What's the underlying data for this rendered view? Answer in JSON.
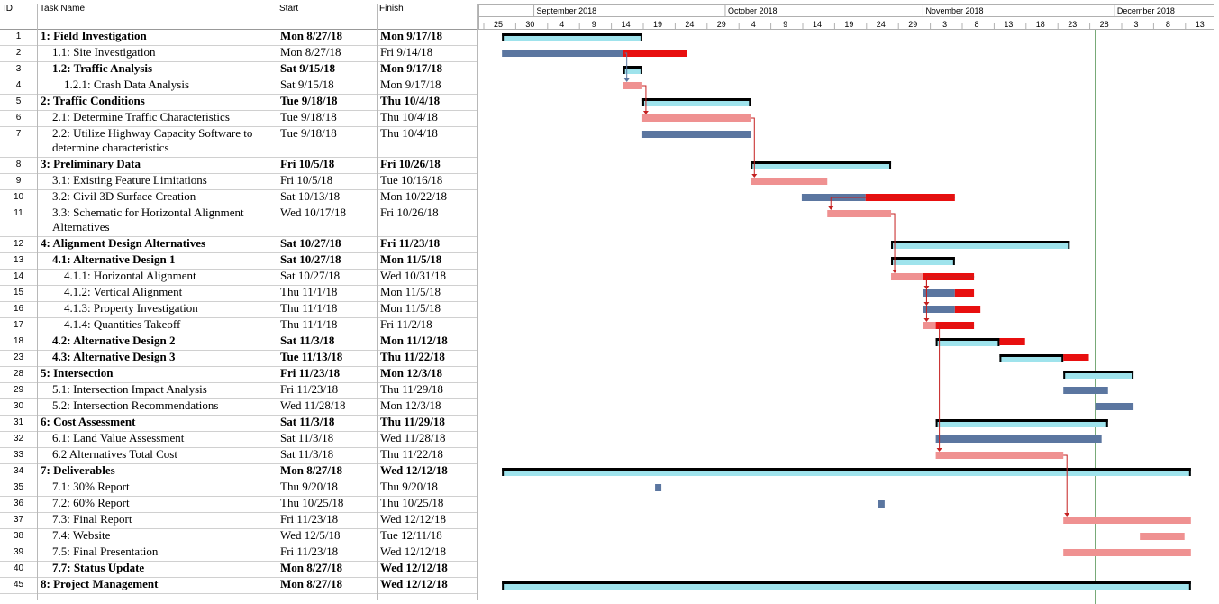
{
  "columns": {
    "id": "ID",
    "name": "Task Name",
    "start": "Start",
    "finish": "Finish"
  },
  "timeline": {
    "months": [
      "September 2018",
      "October 2018",
      "November 2018",
      "December 2018"
    ],
    "days": [
      "25",
      "30",
      "4",
      "9",
      "14",
      "19",
      "24",
      "29",
      "4",
      "9",
      "14",
      "19",
      "24",
      "29",
      "3",
      "8",
      "13",
      "18",
      "23",
      "28",
      "3",
      "8",
      "13"
    ]
  },
  "colors": {
    "summary": "#000000",
    "baseline": "#9fe3ec",
    "normal": "#5b76a0",
    "critical": "#ef9191",
    "late": "#e80f0f",
    "link": "#c42020",
    "status_line": "#6aa06a"
  },
  "tasks": [
    {
      "id": "1",
      "name": "1: Field Investigation",
      "start": "Mon 8/27/18",
      "finish": "Mon 9/17/18",
      "bold": true,
      "lvl": 0,
      "h": 18
    },
    {
      "id": "2",
      "name": "1.1: Site Investigation",
      "start": "Mon 8/27/18",
      "finish": "Fri 9/14/18",
      "lvl": 1,
      "h": 18
    },
    {
      "id": "3",
      "name": "1.2: Traffic Analysis",
      "start": "Sat 9/15/18",
      "finish": "Mon 9/17/18",
      "bold": true,
      "lvl": 1,
      "h": 18
    },
    {
      "id": "4",
      "name": "1.2.1: Crash Data Analysis",
      "start": "Sat 9/15/18",
      "finish": "Mon 9/17/18",
      "lvl": 2,
      "h": 18
    },
    {
      "id": "5",
      "name": "2: Traffic Conditions",
      "start": "Tue 9/18/18",
      "finish": "Thu 10/4/18",
      "bold": true,
      "lvl": 0,
      "h": 18
    },
    {
      "id": "6",
      "name": "2.1: Determine Traffic Characteristics",
      "start": "Tue 9/18/18",
      "finish": "Thu 10/4/18",
      "lvl": 1,
      "h": 18
    },
    {
      "id": "7",
      "name": "2.2: Utilize Highway Capacity Software to determine characteristics",
      "start": "Tue 9/18/18",
      "finish": "Thu 10/4/18",
      "lvl": 1,
      "h": 34
    },
    {
      "id": "8",
      "name": "3: Preliminary Data",
      "start": "Fri 10/5/18",
      "finish": "Fri 10/26/18",
      "bold": true,
      "lvl": 0,
      "h": 18
    },
    {
      "id": "9",
      "name": "3.1: Existing Feature Limitations",
      "start": "Fri 10/5/18",
      "finish": "Tue 10/16/18",
      "lvl": 1,
      "h": 18
    },
    {
      "id": "10",
      "name": "3.2: Civil 3D Surface Creation",
      "start": "Sat 10/13/18",
      "finish": "Mon 10/22/18",
      "lvl": 1,
      "h": 18
    },
    {
      "id": "11",
      "name": "3.3: Schematic for Horizontal Alignment Alternatives",
      "start": "Wed 10/17/18",
      "finish": "Fri 10/26/18",
      "lvl": 1,
      "h": 34
    },
    {
      "id": "12",
      "name": "4: Alignment Design Alternatives",
      "start": "Sat 10/27/18",
      "finish": "Fri 11/23/18",
      "bold": true,
      "lvl": 0,
      "h": 18
    },
    {
      "id": "13",
      "name": "4.1: Alternative Design 1",
      "start": "Sat 10/27/18",
      "finish": "Mon 11/5/18",
      "bold": true,
      "lvl": 1,
      "h": 18
    },
    {
      "id": "14",
      "name": "4.1.1: Horizontal Alignment",
      "start": "Sat 10/27/18",
      "finish": "Wed 10/31/18",
      "lvl": 2,
      "h": 18
    },
    {
      "id": "15",
      "name": "4.1.2: Vertical Alignment",
      "start": "Thu 11/1/18",
      "finish": "Mon 11/5/18",
      "lvl": 2,
      "h": 18
    },
    {
      "id": "16",
      "name": "4.1.3: Property Investigation",
      "start": "Thu 11/1/18",
      "finish": "Mon 11/5/18",
      "lvl": 2,
      "h": 18
    },
    {
      "id": "17",
      "name": "4.1.4: Quantities Takeoff",
      "start": "Thu 11/1/18",
      "finish": "Fri 11/2/18",
      "lvl": 2,
      "h": 18
    },
    {
      "id": "18",
      "name": "4.2: Alternative Design 2",
      "start": "Sat 11/3/18",
      "finish": "Mon 11/12/18",
      "bold": true,
      "lvl": 1,
      "h": 18
    },
    {
      "id": "23",
      "name": "4.3: Alternative Design 3",
      "start": "Tue 11/13/18",
      "finish": "Thu 11/22/18",
      "bold": true,
      "lvl": 1,
      "h": 18
    },
    {
      "id": "28",
      "name": "5: Intersection",
      "start": "Fri 11/23/18",
      "finish": "Mon 12/3/18",
      "bold": true,
      "lvl": 0,
      "h": 18
    },
    {
      "id": "29",
      "name": "5.1: Intersection Impact Analysis",
      "start": "Fri 11/23/18",
      "finish": "Thu 11/29/18",
      "lvl": 1,
      "h": 18
    },
    {
      "id": "30",
      "name": "5.2: Intersection Recommendations",
      "start": "Wed 11/28/18",
      "finish": "Mon 12/3/18",
      "lvl": 1,
      "h": 18
    },
    {
      "id": "31",
      "name": "6: Cost Assessment",
      "start": "Sat 11/3/18",
      "finish": "Thu 11/29/18",
      "bold": true,
      "lvl": 0,
      "h": 18
    },
    {
      "id": "32",
      "name": "6.1: Land Value Assessment",
      "start": "Sat 11/3/18",
      "finish": "Wed 11/28/18",
      "lvl": 1,
      "h": 18
    },
    {
      "id": "33",
      "name": "6.2 Alternatives Total Cost",
      "start": "Sat 11/3/18",
      "finish": "Thu 11/22/18",
      "lvl": 1,
      "h": 18
    },
    {
      "id": "34",
      "name": "7: Deliverables",
      "start": "Mon 8/27/18",
      "finish": "Wed 12/12/18",
      "bold": true,
      "lvl": 0,
      "h": 18
    },
    {
      "id": "35",
      "name": "7.1: 30% Report",
      "start": "Thu 9/20/18",
      "finish": "Thu 9/20/18",
      "lvl": 1,
      "h": 18
    },
    {
      "id": "36",
      "name": "7.2: 60% Report",
      "start": "Thu 10/25/18",
      "finish": "Thu 10/25/18",
      "lvl": 1,
      "h": 18
    },
    {
      "id": "37",
      "name": "7.3: Final Report",
      "start": "Fri 11/23/18",
      "finish": "Wed 12/12/18",
      "lvl": 1,
      "h": 18
    },
    {
      "id": "38",
      "name": "7.4: Website",
      "start": "Wed 12/5/18",
      "finish": "Tue 12/11/18",
      "lvl": 1,
      "h": 18
    },
    {
      "id": "39",
      "name": "7.5: Final Presentation",
      "start": "Fri 11/23/18",
      "finish": "Wed 12/12/18",
      "lvl": 1,
      "h": 18
    },
    {
      "id": "40",
      "name": "7.7: Status Update",
      "start": "Mon 8/27/18",
      "finish": "Wed 12/12/18",
      "bold": true,
      "lvl": 1,
      "h": 18
    },
    {
      "id": "45",
      "name": "8: Project Management",
      "start": "Mon 8/27/18",
      "finish": "Wed 12/12/18",
      "bold": true,
      "lvl": 0,
      "h": 18
    }
  ],
  "bars": [
    {
      "row": "1",
      "type": "summary",
      "s": "2018-08-27",
      "e": "2018-09-17"
    },
    {
      "row": "2",
      "type": "normal",
      "s": "2018-08-27",
      "e": "2018-09-14"
    },
    {
      "row": "2",
      "type": "late",
      "s": "2018-09-15",
      "e": "2018-09-24"
    },
    {
      "row": "3",
      "type": "summary",
      "s": "2018-09-15",
      "e": "2018-09-17"
    },
    {
      "row": "4",
      "type": "critical",
      "s": "2018-09-15",
      "e": "2018-09-17"
    },
    {
      "row": "5",
      "type": "summary",
      "s": "2018-09-18",
      "e": "2018-10-04"
    },
    {
      "row": "6",
      "type": "critical",
      "s": "2018-09-18",
      "e": "2018-10-04"
    },
    {
      "row": "7",
      "type": "normal",
      "s": "2018-09-18",
      "e": "2018-10-04"
    },
    {
      "row": "8",
      "type": "summary",
      "s": "2018-10-05",
      "e": "2018-10-26"
    },
    {
      "row": "9",
      "type": "critical",
      "s": "2018-10-05",
      "e": "2018-10-16"
    },
    {
      "row": "10",
      "type": "normal",
      "s": "2018-10-13",
      "e": "2018-10-22"
    },
    {
      "row": "10",
      "type": "late",
      "s": "2018-10-23",
      "e": "2018-11-05"
    },
    {
      "row": "11",
      "type": "critical",
      "s": "2018-10-17",
      "e": "2018-10-26"
    },
    {
      "row": "12",
      "type": "summary",
      "s": "2018-10-27",
      "e": "2018-11-23"
    },
    {
      "row": "13",
      "type": "summary",
      "s": "2018-10-27",
      "e": "2018-11-05"
    },
    {
      "row": "14",
      "type": "critical",
      "s": "2018-10-27",
      "e": "2018-10-31"
    },
    {
      "row": "14",
      "type": "late",
      "s": "2018-11-01",
      "e": "2018-11-08"
    },
    {
      "row": "15",
      "type": "normal",
      "s": "2018-11-01",
      "e": "2018-11-05"
    },
    {
      "row": "15",
      "type": "late",
      "s": "2018-11-06",
      "e": "2018-11-08"
    },
    {
      "row": "16",
      "type": "normal",
      "s": "2018-11-01",
      "e": "2018-11-05"
    },
    {
      "row": "16",
      "type": "late",
      "s": "2018-11-06",
      "e": "2018-11-09"
    },
    {
      "row": "17",
      "type": "critical",
      "s": "2018-11-01",
      "e": "2018-11-02"
    },
    {
      "row": "17",
      "type": "late",
      "s": "2018-11-03",
      "e": "2018-11-08"
    },
    {
      "row": "18",
      "type": "summary",
      "s": "2018-11-03",
      "e": "2018-11-12"
    },
    {
      "row": "18",
      "type": "late",
      "s": "2018-11-13",
      "e": "2018-11-16"
    },
    {
      "row": "23",
      "type": "summary",
      "s": "2018-11-13",
      "e": "2018-11-22"
    },
    {
      "row": "23",
      "type": "late",
      "s": "2018-11-23",
      "e": "2018-11-26"
    },
    {
      "row": "28",
      "type": "summary",
      "s": "2018-11-23",
      "e": "2018-12-03"
    },
    {
      "row": "29",
      "type": "normal",
      "s": "2018-11-23",
      "e": "2018-11-29"
    },
    {
      "row": "30",
      "type": "normal",
      "s": "2018-11-28",
      "e": "2018-12-03"
    },
    {
      "row": "31",
      "type": "summary",
      "s": "2018-11-03",
      "e": "2018-11-29"
    },
    {
      "row": "32",
      "type": "normal",
      "s": "2018-11-03",
      "e": "2018-11-28"
    },
    {
      "row": "33",
      "type": "critical",
      "s": "2018-11-03",
      "e": "2018-11-22"
    },
    {
      "row": "34",
      "type": "summary",
      "s": "2018-08-27",
      "e": "2018-12-12"
    },
    {
      "row": "35",
      "type": "normal",
      "s": "2018-09-20",
      "e": "2018-09-20"
    },
    {
      "row": "36",
      "type": "normal",
      "s": "2018-10-25",
      "e": "2018-10-25"
    },
    {
      "row": "37",
      "type": "critical",
      "s": "2018-11-23",
      "e": "2018-12-12"
    },
    {
      "row": "38",
      "type": "critical",
      "s": "2018-12-05",
      "e": "2018-12-11"
    },
    {
      "row": "39",
      "type": "critical",
      "s": "2018-11-23",
      "e": "2018-12-12"
    },
    {
      "row": "45",
      "type": "summary",
      "s": "2018-08-27",
      "e": "2018-12-12"
    }
  ],
  "links": [
    {
      "from": "2",
      "to": "4",
      "color": "normal"
    },
    {
      "from": "4",
      "to": "6",
      "color": "link"
    },
    {
      "from": "6",
      "to": "9",
      "color": "link"
    },
    {
      "from": "10",
      "to": "11",
      "color": "link"
    },
    {
      "from": "11",
      "to": "14",
      "color": "link"
    },
    {
      "from": "14",
      "to": "15",
      "color": "link"
    },
    {
      "from": "14",
      "to": "16",
      "color": "link"
    },
    {
      "from": "14",
      "to": "17",
      "color": "link"
    },
    {
      "from": "17",
      "to": "33",
      "color": "link"
    },
    {
      "from": "33",
      "to": "37",
      "color": "link"
    }
  ],
  "status_date": "2018-11-28"
}
